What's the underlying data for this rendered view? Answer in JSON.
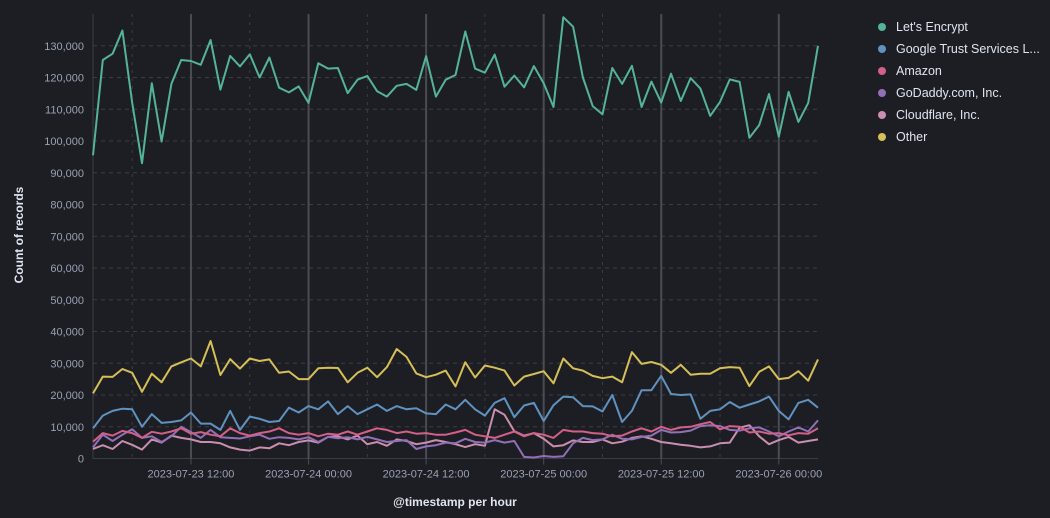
{
  "colors": {
    "background": "#1d1e24",
    "grid": "#3b3d45",
    "axis_text": "#98a2b3",
    "major_grid": "#4a4c55"
  },
  "legend": {
    "items": [
      {
        "label": "Let's Encrypt",
        "color": "#54b399"
      },
      {
        "label": "Google Trust Services L...",
        "color": "#6092c0"
      },
      {
        "label": "Amazon",
        "color": "#d36086"
      },
      {
        "label": "GoDaddy.com, Inc.",
        "color": "#9170b8"
      },
      {
        "label": "Cloudflare, Inc.",
        "color": "#ca8eae"
      },
      {
        "label": "Other",
        "color": "#d6bf57"
      }
    ]
  },
  "chart_data": {
    "type": "line",
    "title": "",
    "xlabel": "@timestamp per hour",
    "ylabel": "Count of records",
    "ylim": [
      0,
      140000
    ],
    "yticks": [
      0,
      10000,
      20000,
      30000,
      40000,
      50000,
      60000,
      70000,
      80000,
      90000,
      100000,
      110000,
      120000,
      130000
    ],
    "ytick_labels": [
      "0",
      "10,000",
      "20,000",
      "30,000",
      "40,000",
      "50,000",
      "60,000",
      "70,000",
      "80,000",
      "90,000",
      "100,000",
      "110,000",
      "120,000",
      "130,000"
    ],
    "xtick_labels": [
      "2023-07-23 12:00",
      "2023-07-24 00:00",
      "2023-07-24 12:00",
      "2023-07-25 00:00",
      "2023-07-25 12:00",
      "2023-07-26 00:00"
    ],
    "grid": true,
    "legend_position": "right",
    "x_start": "2023-07-23 02:00",
    "x_step": "1 hour",
    "series": [
      {
        "name": "Let's Encrypt",
        "values": [
          95500,
          125500,
          127500,
          134800,
          112000,
          93000,
          118200,
          99800,
          118000,
          125500,
          125200,
          124000,
          131800,
          116200,
          126800,
          123500,
          127300,
          120000,
          126300,
          116800,
          115300,
          117200,
          112000,
          124500,
          122800,
          123000,
          115100,
          119300,
          120500,
          115700,
          114000,
          117400,
          118000,
          116100,
          126700,
          114000,
          119300,
          120800,
          134500,
          122800,
          121500,
          127200,
          117100,
          120600,
          116900,
          123600,
          118200,
          110700,
          139000,
          136000,
          120000,
          111000,
          108400,
          123000,
          118000,
          123700,
          110700,
          118700,
          112100,
          121200,
          112600,
          119800,
          116500,
          107900,
          112300,
          119400,
          118600,
          101000,
          105000,
          114800,
          101400,
          115500,
          106000,
          112000,
          130000
        ]
      },
      {
        "name": "Google Trust Services L...",
        "values": [
          9500,
          13500,
          15000,
          15700,
          15500,
          10000,
          14000,
          11200,
          11500,
          12000,
          14500,
          11000,
          11000,
          9000,
          15000,
          9000,
          13200,
          12500,
          11500,
          11800,
          16000,
          14500,
          16500,
          15500,
          18000,
          14000,
          16500,
          14000,
          15500,
          17000,
          15000,
          16500,
          15500,
          15800,
          14200,
          14000,
          17000,
          15500,
          18500,
          15500,
          13500,
          17500,
          19000,
          13000,
          16700,
          17500,
          11800,
          16800,
          19500,
          19300,
          16500,
          16400,
          14800,
          20000,
          11500,
          15000,
          21500,
          21500,
          26000,
          20300,
          20000,
          20200,
          12500,
          15000,
          15500,
          17800,
          16000,
          17000,
          18000,
          19500,
          15000,
          12300,
          17500,
          18500,
          16000
        ]
      },
      {
        "name": "Amazon",
        "values": [
          5300,
          8000,
          7200,
          8700,
          8000,
          6500,
          8400,
          7800,
          8500,
          9500,
          7800,
          8300,
          7500,
          7000,
          9500,
          8000,
          7200,
          8000,
          8500,
          9500,
          8000,
          7500,
          8000,
          7000,
          7800,
          7500,
          8500,
          7500,
          8500,
          9500,
          9000,
          8000,
          8500,
          7800,
          8000,
          7500,
          7500,
          8200,
          9000,
          7500,
          7000,
          6500,
          7500,
          8500,
          7000,
          8000,
          7500,
          6500,
          9000,
          8500,
          8500,
          8000,
          7800,
          7000,
          7200,
          8500,
          9500,
          8500,
          10000,
          9000,
          9800,
          10000,
          10800,
          11500,
          9200,
          10200,
          10000,
          8200,
          8500,
          7800,
          8000,
          7300,
          8000,
          7800,
          9500
        ]
      },
      {
        "name": "GoDaddy.com, Inc.",
        "values": [
          3500,
          7500,
          5500,
          7500,
          9200,
          6500,
          7000,
          5200,
          7000,
          10000,
          8300,
          6500,
          9000,
          6700,
          6500,
          6300,
          7000,
          7500,
          6200,
          6700,
          6500,
          6000,
          6700,
          5200,
          6800,
          6400,
          6700,
          6000,
          6800,
          6000,
          5200,
          5500,
          5800,
          3000,
          3800,
          4200,
          5000,
          4800,
          6200,
          5200,
          5000,
          5800,
          5000,
          5500,
          500,
          300,
          800,
          500,
          700,
          4800,
          6500,
          5800,
          6000,
          7500,
          6200,
          6000,
          6800,
          7200,
          9000,
          8200,
          8300,
          8800,
          10200,
          10500,
          10200,
          9000,
          8800,
          9500,
          9800,
          8500,
          7000,
          8500,
          9800,
          8500,
          12000
        ]
      },
      {
        "name": "Cloudflare, Inc.",
        "values": [
          3000,
          4200,
          3000,
          5500,
          4300,
          2800,
          6000,
          5000,
          7200,
          6500,
          6000,
          5200,
          5200,
          4800,
          3500,
          2800,
          2500,
          3500,
          3200,
          4800,
          4200,
          5200,
          5700,
          5000,
          6800,
          7000,
          6000,
          7200,
          4500,
          5200,
          4000,
          6000,
          5500,
          4500,
          5000,
          5800,
          5200,
          4500,
          3600,
          4500,
          4000,
          15500,
          13800,
          8600,
          7200,
          8000,
          6200,
          3800,
          4200,
          5700,
          5200,
          5200,
          6000,
          4800,
          5300,
          6500,
          7000,
          6200,
          5200,
          4800,
          4300,
          4000,
          3500,
          3800,
          4800,
          5000,
          9700,
          10500,
          7000,
          4500,
          5800,
          6800,
          5000,
          5500,
          6000
        ]
      },
      {
        "name": "Other",
        "values": [
          20500,
          25800,
          25700,
          28200,
          27000,
          21000,
          26700,
          24000,
          29000,
          30300,
          31500,
          29000,
          37000,
          26300,
          31300,
          28300,
          31500,
          30700,
          31200,
          27000,
          27400,
          25000,
          25000,
          28400,
          28600,
          28500,
          24000,
          27000,
          28600,
          25600,
          28800,
          34500,
          32000,
          26800,
          25600,
          26400,
          27700,
          22700,
          30300,
          25500,
          29300,
          28600,
          27700,
          23000,
          25800,
          26600,
          27500,
          23700,
          31500,
          28400,
          27700,
          26000,
          25300,
          25800,
          24000,
          33500,
          29800,
          30400,
          29500,
          27000,
          29500,
          26400,
          26700,
          26700,
          28400,
          28800,
          28600,
          22800,
          27300,
          29000,
          25000,
          25400,
          27500,
          24500,
          31200
        ]
      }
    ]
  }
}
